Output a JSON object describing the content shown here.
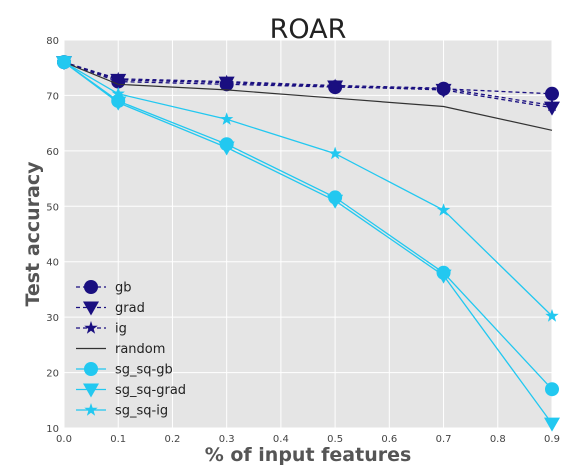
{
  "chart_data": {
    "type": "line",
    "title": "ROAR",
    "xlabel": "% of input features",
    "ylabel": "Test accuracy",
    "xlim": [
      0.0,
      0.9
    ],
    "ylim": [
      10,
      80
    ],
    "xticks": [
      "0.0",
      "0.1",
      "0.2",
      "0.3",
      "0.4",
      "0.5",
      "0.6",
      "0.7",
      "0.8",
      "0.9"
    ],
    "yticks": [
      "10",
      "20",
      "30",
      "40",
      "50",
      "60",
      "70",
      "80"
    ],
    "grid": true,
    "legend_position": "lower-left",
    "x": [
      0.0,
      0.1,
      0.3,
      0.5,
      0.7,
      0.9
    ],
    "series": [
      {
        "name": "gb",
        "color": "#1a0f80",
        "line": "dashed",
        "marker": "circle",
        "values": [
          76,
          72.5,
          72.0,
          71.5,
          71.2,
          70.3
        ]
      },
      {
        "name": "grad",
        "color": "#1a0f80",
        "line": "dashed",
        "marker": "triangle-down",
        "values": [
          76,
          72.8,
          72.3,
          71.6,
          71.0,
          67.8
        ]
      },
      {
        "name": "ig",
        "color": "#1a0f80",
        "line": "dashed",
        "marker": "star",
        "values": [
          76,
          73.0,
          72.5,
          71.8,
          71.3,
          68.2
        ]
      },
      {
        "name": "random",
        "color": "#333333",
        "line": "solid",
        "marker": "none",
        "values": [
          76,
          72.0,
          71.0,
          69.5,
          68.0,
          63.7
        ]
      },
      {
        "name": "sg_sq-gb",
        "color": "#22c8f0",
        "line": "solid",
        "marker": "circle",
        "values": [
          76,
          69.0,
          61.2,
          51.6,
          38.0,
          17.0
        ]
      },
      {
        "name": "sg_sq-grad",
        "color": "#22c8f0",
        "line": "solid",
        "marker": "triangle-down",
        "values": [
          76,
          68.7,
          60.6,
          51.0,
          37.5,
          10.8
        ]
      },
      {
        "name": "sg_sq-ig",
        "color": "#22c8f0",
        "line": "solid",
        "marker": "star",
        "values": [
          76,
          70.3,
          65.7,
          59.5,
          49.3,
          30.2
        ]
      }
    ]
  }
}
